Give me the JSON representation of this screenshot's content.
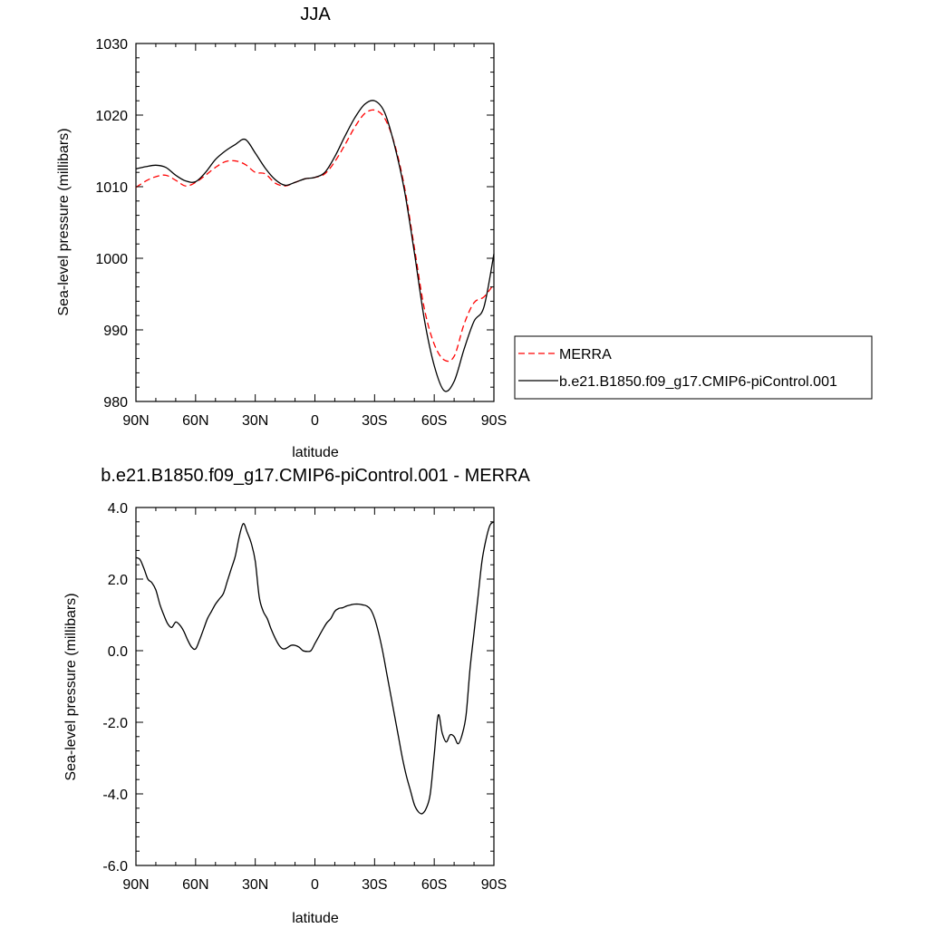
{
  "chart_data": [
    {
      "type": "line",
      "title": "JJA",
      "xlabel": "latitude",
      "ylabel": "Sea-level pressure (millibars)",
      "xlim": [
        90,
        -90
      ],
      "ylim": [
        980,
        1030
      ],
      "xticks": [
        {
          "value": 90,
          "label": "90N"
        },
        {
          "value": 60,
          "label": "60N"
        },
        {
          "value": 30,
          "label": "30N"
        },
        {
          "value": 0,
          "label": "0"
        },
        {
          "value": -30,
          "label": "30S"
        },
        {
          "value": -60,
          "label": "60S"
        },
        {
          "value": -90,
          "label": "90S"
        }
      ],
      "yticks": [
        {
          "value": 980,
          "label": "980"
        },
        {
          "value": 990,
          "label": "990"
        },
        {
          "value": 1000,
          "label": "1000"
        },
        {
          "value": 1010,
          "label": "1010"
        },
        {
          "value": 1020,
          "label": "1020"
        },
        {
          "value": 1030,
          "label": "1030"
        }
      ],
      "legend_position": "right",
      "series": [
        {
          "name": "MERRA",
          "color": "#ff0000",
          "dashed": true,
          "x": [
            90,
            85,
            80,
            75,
            70,
            65,
            60,
            55,
            50,
            45,
            40,
            35,
            30,
            25,
            20,
            15,
            10,
            5,
            0,
            -5,
            -10,
            -15,
            -20,
            -25,
            -30,
            -35,
            -40,
            -45,
            -50,
            -55,
            -60,
            -65,
            -70,
            -75,
            -80,
            -85,
            -90
          ],
          "y": [
            1009.9,
            1010.8,
            1011.4,
            1011.6,
            1010.9,
            1010.1,
            1010.6,
            1011.6,
            1012.7,
            1013.5,
            1013.6,
            1013.1,
            1012.0,
            1011.8,
            1010.5,
            1010.1,
            1010.6,
            1011.1,
            1011.3,
            1011.8,
            1013.5,
            1015.8,
            1018.3,
            1020.2,
            1020.7,
            1019.6,
            1016.0,
            1010.0,
            1001.5,
            993.0,
            988.0,
            985.8,
            986.3,
            990.8,
            993.8,
            994.6,
            996.4
          ]
        },
        {
          "name": "b.e21.B1850.f09_g17.CMIP6-piControl.001",
          "color": "#000000",
          "dashed": false,
          "x": [
            90,
            85,
            80,
            75,
            70,
            65,
            60,
            55,
            50,
            45,
            40,
            35,
            30,
            25,
            20,
            15,
            10,
            5,
            0,
            -5,
            -10,
            -15,
            -20,
            -25,
            -30,
            -35,
            -40,
            -45,
            -50,
            -55,
            -60,
            -65,
            -70,
            -75,
            -80,
            -85,
            -90
          ],
          "y": [
            1012.5,
            1012.8,
            1013.0,
            1012.7,
            1011.6,
            1010.8,
            1010.7,
            1012.0,
            1013.8,
            1015.0,
            1015.9,
            1016.6,
            1014.7,
            1012.6,
            1011.0,
            1010.2,
            1010.6,
            1011.1,
            1011.3,
            1012.0,
            1014.2,
            1017.0,
            1019.6,
            1021.5,
            1022.0,
            1020.4,
            1015.8,
            1009.5,
            1000.8,
            991.5,
            985.0,
            981.5,
            982.8,
            987.3,
            991.2,
            993.2,
            1000.6
          ]
        }
      ]
    },
    {
      "type": "line",
      "title": "b.e21.B1850.f09_g17.CMIP6-piControl.001 - MERRA",
      "xlabel": "latitude",
      "ylabel": "Sea-level pressure (millibars)",
      "xlim": [
        90,
        -90
      ],
      "ylim": [
        -6.0,
        4.0
      ],
      "xticks": [
        {
          "value": 90,
          "label": "90N"
        },
        {
          "value": 60,
          "label": "60N"
        },
        {
          "value": 30,
          "label": "30N"
        },
        {
          "value": 0,
          "label": "0"
        },
        {
          "value": -30,
          "label": "30S"
        },
        {
          "value": -60,
          "label": "60S"
        },
        {
          "value": -90,
          "label": "90S"
        }
      ],
      "yticks": [
        {
          "value": -6.0,
          "label": "-6.0"
        },
        {
          "value": -4.0,
          "label": "-4.0"
        },
        {
          "value": -2.0,
          "label": "-2.0"
        },
        {
          "value": 0.0,
          "label": "0.0"
        },
        {
          "value": 2.0,
          "label": "2.0"
        },
        {
          "value": 4.0,
          "label": "4.0"
        }
      ],
      "series": [
        {
          "color": "#000000",
          "dashed": false,
          "x": [
            90,
            88,
            86,
            84,
            82,
            80,
            78,
            76,
            74,
            72,
            70,
            68,
            66,
            64,
            62,
            60,
            58,
            56,
            54,
            52,
            50,
            48,
            46,
            44,
            42,
            40,
            38,
            36,
            34,
            32,
            30,
            28,
            26,
            24,
            22,
            20,
            18,
            16,
            14,
            12,
            10,
            8,
            6,
            4,
            2,
            0,
            -2,
            -4,
            -6,
            -8,
            -10,
            -12,
            -14,
            -16,
            -18,
            -20,
            -22,
            -24,
            -26,
            -28,
            -30,
            -32,
            -34,
            -36,
            -38,
            -40,
            -42,
            -44,
            -46,
            -48,
            -50,
            -52,
            -54,
            -56,
            -58,
            -60,
            -62,
            -64,
            -66,
            -68,
            -70,
            -72,
            -74,
            -76,
            -78,
            -80,
            -82,
            -84,
            -86,
            -88,
            -90
          ],
          "y": [
            2.6,
            2.55,
            2.3,
            2.0,
            1.9,
            1.7,
            1.3,
            1.0,
            0.75,
            0.65,
            0.8,
            0.72,
            0.55,
            0.3,
            0.1,
            0.05,
            0.3,
            0.6,
            0.9,
            1.1,
            1.3,
            1.45,
            1.6,
            1.95,
            2.3,
            2.65,
            3.2,
            3.55,
            3.3,
            3.0,
            2.5,
            1.5,
            1.1,
            0.9,
            0.6,
            0.35,
            0.15,
            0.05,
            0.08,
            0.15,
            0.15,
            0.1,
            0.0,
            -0.02,
            0.0,
            0.2,
            0.4,
            0.6,
            0.78,
            0.9,
            1.1,
            1.18,
            1.2,
            1.25,
            1.28,
            1.3,
            1.3,
            1.28,
            1.25,
            1.15,
            0.9,
            0.5,
            0.0,
            -0.6,
            -1.2,
            -1.8,
            -2.4,
            -3.0,
            -3.5,
            -3.9,
            -4.3,
            -4.5,
            -4.55,
            -4.4,
            -4.0,
            -2.9,
            -1.8,
            -2.3,
            -2.55,
            -2.35,
            -2.4,
            -2.6,
            -2.35,
            -1.8,
            -0.5,
            0.5,
            1.5,
            2.5,
            3.1,
            3.5,
            3.6
          ]
        }
      ]
    }
  ]
}
